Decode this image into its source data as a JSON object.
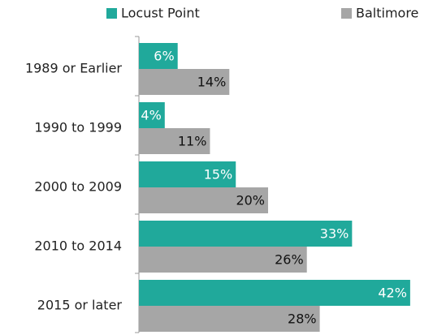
{
  "chart_data": {
    "type": "bar",
    "orientation": "horizontal",
    "categories": [
      "1989 or Earlier",
      "1990 to 1999",
      "2000 to 2009",
      "2010 to 2014",
      "2015 or later"
    ],
    "series": [
      {
        "name": "Locust Point",
        "color": "#20a99b",
        "values": [
          6,
          4,
          15,
          33,
          42
        ],
        "value_labels": [
          "6%",
          "4%",
          "15%",
          "33%",
          "42%"
        ]
      },
      {
        "name": "Baltimore",
        "color": "#a6a6a6",
        "values": [
          14,
          11,
          20,
          26,
          28
        ],
        "value_labels": [
          "14%",
          "11%",
          "20%",
          "26%",
          "28%"
        ]
      }
    ],
    "legend": "top"
  }
}
